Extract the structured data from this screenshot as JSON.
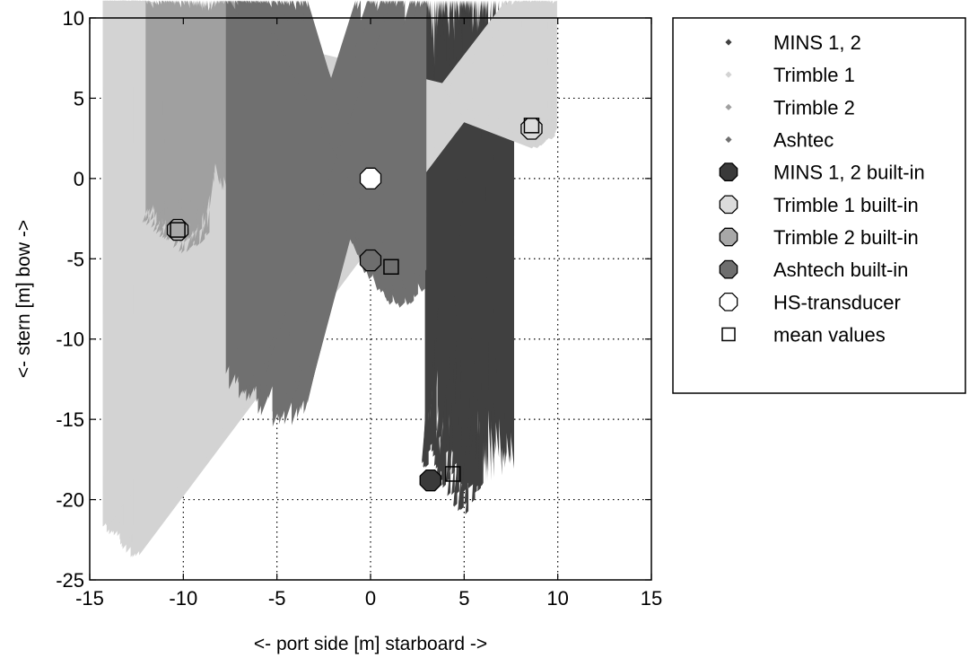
{
  "chart_data": {
    "type": "scatter",
    "xlabel": "<- port side  [m]  starboard ->",
    "ylabel": "<- stern  [m]  bow ->",
    "xlim": [
      -15,
      15
    ],
    "ylim": [
      -25,
      10
    ],
    "xticks": [
      -15,
      -10,
      -5,
      0,
      5,
      10,
      15
    ],
    "yticks": [
      10,
      5,
      0,
      -5,
      -10,
      -15,
      -20,
      -25
    ],
    "grid": true,
    "legend_position": "outside-right-top",
    "series": [
      {
        "name": "MINS 1, 2",
        "marker": "small-diamond",
        "color": "#404040",
        "cluster": {
          "x_range": [
            2.8,
            6.2
          ],
          "y_range": [
            -22,
            -16
          ],
          "center": [
            4.4,
            -18.4
          ]
        }
      },
      {
        "name": "Trimble 1",
        "marker": "small-diamond",
        "color": "#d3d3d3",
        "cluster": {
          "x_range": [
            7.2,
            10.2
          ],
          "y_range": [
            1.7,
            4.8
          ],
          "center": [
            8.6,
            3.3
          ]
        }
      },
      {
        "name": "Trimble 2",
        "marker": "small-diamond",
        "color": "#a0a0a0",
        "cluster": {
          "x_range": [
            -12.4,
            -8.8
          ],
          "y_range": [
            -4.8,
            -1.7
          ],
          "center": [
            -10.3,
            -3.2
          ]
        }
      },
      {
        "name": "Ashtec",
        "marker": "small-diamond",
        "color": "#707070",
        "cluster": {
          "x_range": [
            -0.8,
            3.6
          ],
          "y_range": [
            -8.8,
            -3.0
          ],
          "center": [
            1.1,
            -5.5
          ]
        }
      },
      {
        "name": "MINS 1, 2 built-in",
        "marker": "large-octagon",
        "color": "#3a3a3a",
        "x": 3.2,
        "y": -18.8
      },
      {
        "name": "Trimble 1 built-in",
        "marker": "large-octagon",
        "color": "#dcdcdc",
        "x": 8.6,
        "y": 3.1
      },
      {
        "name": "Trimble 2 built-in",
        "marker": "large-octagon",
        "color": "#a8a8a8",
        "x": -10.3,
        "y": -3.2
      },
      {
        "name": "Ashtech built-in",
        "marker": "large-octagon",
        "color": "#6e6e6e",
        "x": 0.0,
        "y": -5.1
      },
      {
        "name": "HS-transducer",
        "marker": "large-octagon",
        "color": "#ffffff",
        "x": 0.0,
        "y": 0.0
      },
      {
        "name": "mean values",
        "marker": "square",
        "color": "#ffffff",
        "points": [
          {
            "x": 4.4,
            "y": -18.4
          },
          {
            "x": 8.6,
            "y": 3.3
          },
          {
            "x": -10.3,
            "y": -3.2
          },
          {
            "x": 1.1,
            "y": -5.5
          }
        ]
      }
    ]
  }
}
